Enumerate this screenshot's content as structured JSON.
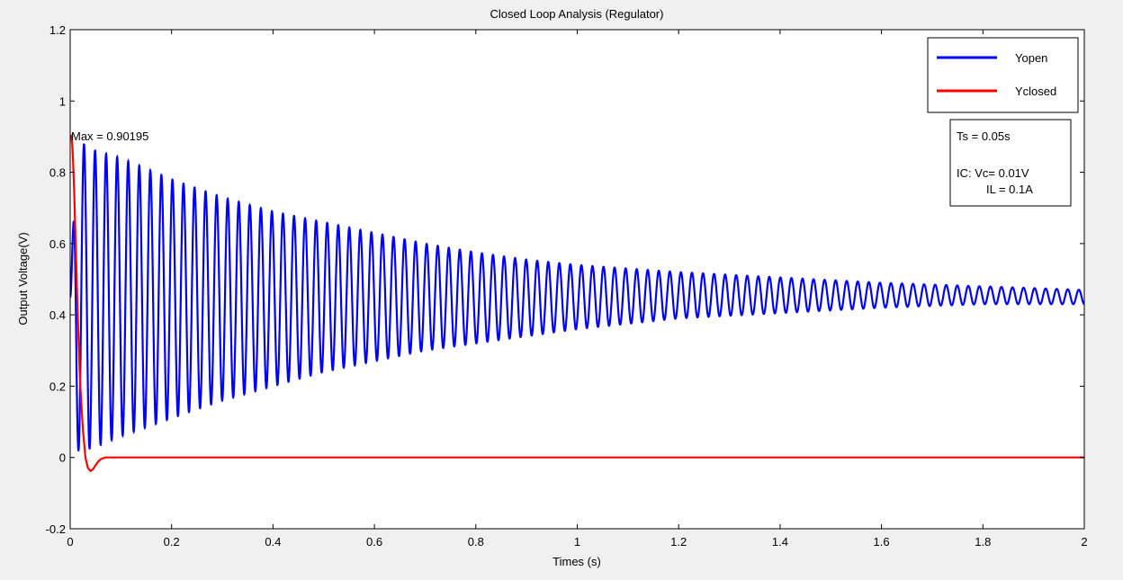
{
  "chart_data": {
    "type": "line",
    "title": "Closed Loop Analysis (Regulator)",
    "xlabel": "Times (s)",
    "ylabel": "Output Voltage(V)",
    "xlim": [
      0,
      2
    ],
    "ylim": [
      -0.2,
      1.2
    ],
    "xticks": [
      0,
      0.2,
      0.4,
      0.6,
      0.8,
      1,
      1.2,
      1.4,
      1.6,
      1.8,
      2
    ],
    "xtick_labels": [
      "0",
      "0.2",
      "0.4",
      "0.6",
      "0.8",
      "1",
      "1.2",
      "1.4",
      "1.6",
      "1.8",
      "2"
    ],
    "yticks": [
      -0.2,
      0,
      0.2,
      0.4,
      0.6,
      0.8,
      1,
      1.2
    ],
    "ytick_labels": [
      "-0.2",
      "0",
      "0.2",
      "0.4",
      "0.6",
      "0.8",
      "1",
      "1.2"
    ],
    "grid": false,
    "legend_position": "top-right",
    "series": [
      {
        "name": "Yopen",
        "color": "#0000ff",
        "style": "damped oscillation",
        "x": [
          0,
          0.0125,
          0.025,
          0.05,
          0.1,
          0.2,
          0.3,
          0.4,
          0.5,
          0.6,
          0.7,
          0.8,
          0.9,
          1.0,
          1.2,
          1.4,
          1.6,
          1.8,
          2.0
        ],
        "envelope_upper": [
          0.45,
          0.87,
          0.88,
          0.86,
          0.84,
          0.78,
          0.73,
          0.69,
          0.66,
          0.63,
          0.6,
          0.575,
          0.555,
          0.54,
          0.52,
          0.505,
          0.49,
          0.48,
          0.47
        ],
        "envelope_lower": [
          0.45,
          0.02,
          0.02,
          0.03,
          0.06,
          0.11,
          0.16,
          0.2,
          0.24,
          0.27,
          0.3,
          0.32,
          0.34,
          0.36,
          0.39,
          0.405,
          0.42,
          0.43,
          0.43
        ],
        "oscillation_period_s": 0.0218
      },
      {
        "name": "Yclosed",
        "color": "#ff0000",
        "x": [
          0,
          0.002,
          0.004,
          0.006,
          0.008,
          0.01,
          0.012,
          0.014,
          0.016,
          0.018,
          0.02,
          0.025,
          0.03,
          0.035,
          0.04,
          0.045,
          0.05,
          0.055,
          0.06,
          0.065,
          0.07,
          0.08,
          2.0
        ],
        "y": [
          0.9,
          0.902,
          0.88,
          0.82,
          0.74,
          0.64,
          0.54,
          0.44,
          0.35,
          0.27,
          0.2,
          0.08,
          0.0,
          -0.03,
          -0.038,
          -0.033,
          -0.022,
          -0.012,
          -0.005,
          -0.002,
          0.0,
          0.0,
          0.0
        ]
      }
    ],
    "annotations": [
      {
        "text": "Max = 0.90195",
        "x": 0.002,
        "y": 0.902
      }
    ],
    "info_box": {
      "line1": "Ts = 0.05s",
      "line2": "IC: Vc= 0.01V",
      "line3": "IL = 0.1A"
    }
  }
}
